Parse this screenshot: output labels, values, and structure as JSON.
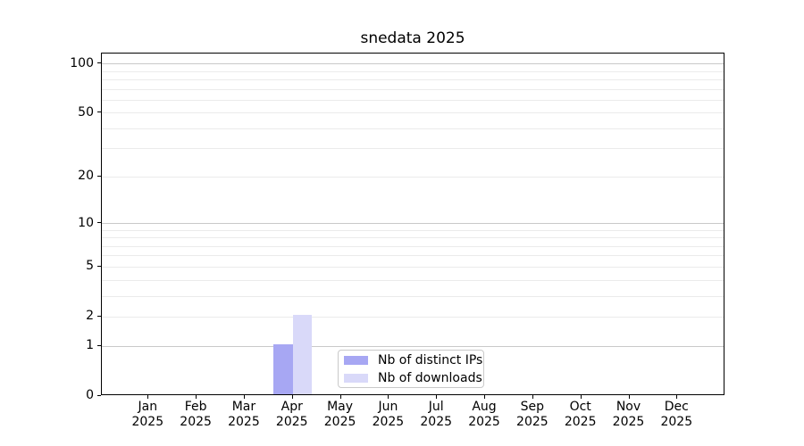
{
  "chart_data": {
    "type": "bar",
    "title": "snedata 2025",
    "x_tick_year": "2025",
    "categories": [
      "Jan",
      "Feb",
      "Mar",
      "Apr",
      "May",
      "Jun",
      "Jul",
      "Aug",
      "Sep",
      "Oct",
      "Nov",
      "Dec"
    ],
    "series": [
      {
        "name": "Nb of distinct IPs",
        "color": "#a7a7f3",
        "values": [
          0,
          0,
          0,
          1,
          0,
          0,
          0,
          0,
          0,
          0,
          0,
          0
        ]
      },
      {
        "name": "Nb of downloads",
        "color": "#d9d9f9",
        "values": [
          0,
          0,
          0,
          2,
          0,
          0,
          0,
          0,
          0,
          0,
          0,
          0
        ]
      }
    ],
    "y_scale": "log1p",
    "ylim": [
      0,
      115
    ],
    "y_ticks": [
      0,
      1,
      2,
      5,
      10,
      20,
      50,
      100
    ],
    "y_major_grid": [
      1,
      10,
      100
    ],
    "y_minor_grid": [
      2,
      3,
      4,
      5,
      6,
      7,
      8,
      9,
      20,
      30,
      40,
      50,
      60,
      70,
      80,
      90
    ],
    "grid": true,
    "legend_position": "inside-bottom-center",
    "colors": {
      "axis": "#000000",
      "major_grid": "#c9c9c9",
      "minor_grid": "#ebebeb",
      "legend_border": "#c9c9c9",
      "text": "#000000"
    }
  }
}
